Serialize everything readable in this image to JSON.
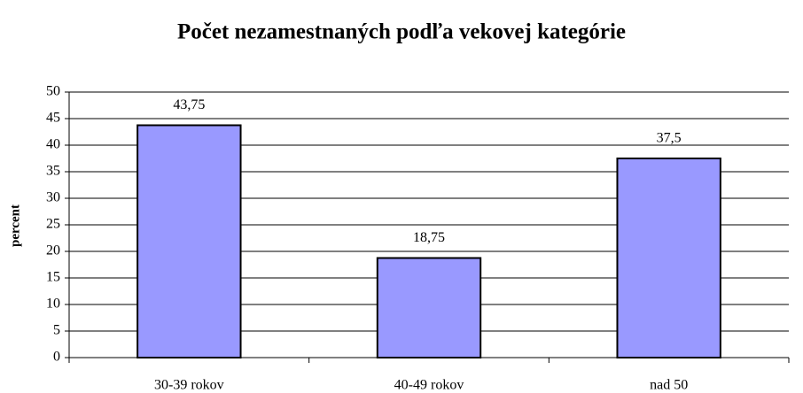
{
  "chart_data": {
    "type": "bar",
    "title": "Počet nezamestnaných podľa vekovej kategórie",
    "y_label": "percent",
    "categories": [
      "30-39 rokov",
      "40-49 rokov",
      "nad 50"
    ],
    "values": [
      43.75,
      18.75,
      37.5
    ],
    "value_labels": [
      "43,75",
      "18,75",
      "37,5"
    ],
    "color": "#9999ff",
    "ylim": [
      0,
      50
    ],
    "yticks": [
      0,
      5,
      10,
      15,
      20,
      25,
      30,
      35,
      40,
      45,
      50
    ],
    "grid": true
  }
}
